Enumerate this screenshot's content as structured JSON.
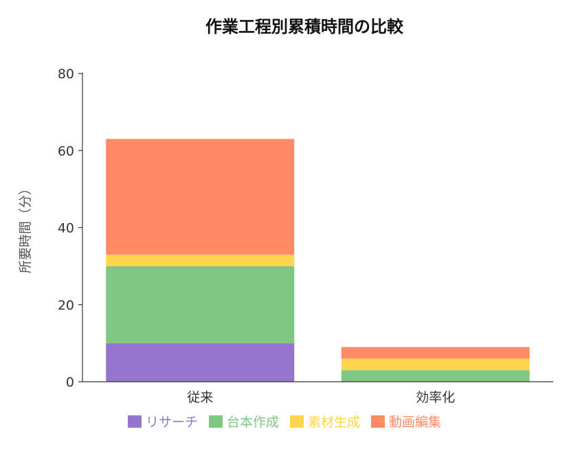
{
  "chart_data": {
    "type": "bar",
    "stacked": true,
    "title": "作業工程別累積時間の比較",
    "xlabel": "",
    "ylabel": "所要時間（分）",
    "ylim": [
      0,
      80
    ],
    "yticks": [
      0,
      20,
      40,
      60,
      80
    ],
    "categories": [
      "従来",
      "効率化"
    ],
    "series": [
      {
        "name": "リサーチ",
        "color": "#9575cd",
        "values": [
          10,
          0
        ]
      },
      {
        "name": "台本作成",
        "color": "#81c784",
        "values": [
          20,
          3
        ]
      },
      {
        "name": "素材生成",
        "color": "#ffd54f",
        "values": [
          3,
          3
        ]
      },
      {
        "name": "動画編集",
        "color": "#ff8a65",
        "values": [
          30,
          3
        ]
      }
    ],
    "legend_position": "bottom",
    "grid": false
  }
}
